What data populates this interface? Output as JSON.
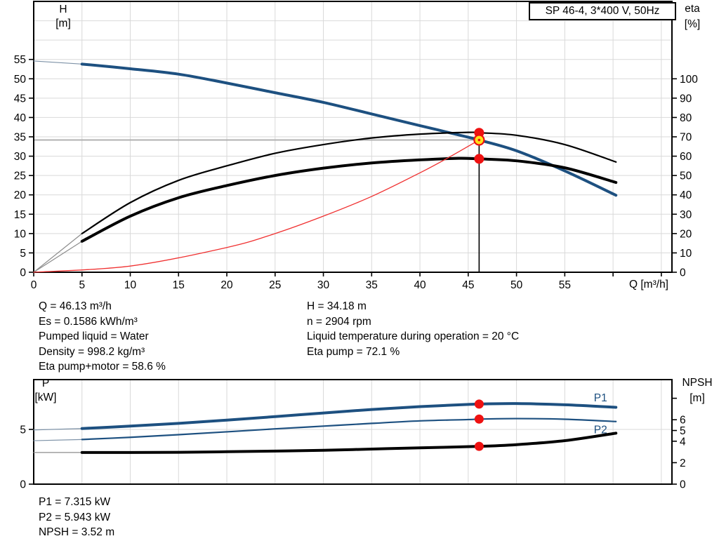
{
  "title_box": "SP 46-4, 3*400 V, 50Hz",
  "labels": {
    "h": "H",
    "h_unit": "[m]",
    "eta": "eta",
    "eta_unit": "[%]",
    "q": "Q [m³/h]",
    "p": "P",
    "p_unit": "[kW]",
    "npsh": "NPSH",
    "npsh_unit": "[m]"
  },
  "info": {
    "left": [
      "Q = 46.13 m³/h",
      "Es = 0.1586 kWh/m³",
      "Pumped liquid = Water",
      "Density = 998.2 kg/m³",
      "Eta pump+motor = 58.6 %"
    ],
    "right": [
      "H = 34.18 m",
      "n = 2904 rpm",
      "Liquid temperature during operation = 20 °C",
      "Eta pump = 72.1 %"
    ]
  },
  "results": [
    "P1 = 7.315 kW",
    "P2 = 5.943 kW",
    "NPSH = 3.52 m"
  ],
  "colors": {
    "curve_blue": "#1d5080",
    "curve_black": "#000000",
    "affinity_red": "#f03030",
    "marker_red": "#ee1111",
    "marker_yellow": "#ffe11a",
    "grid": "#d9d9d9",
    "op_gray_line": "#b0b0b0"
  },
  "chart_data": [
    {
      "type": "line",
      "title": "SP 46-4, 3*400 V, 50Hz",
      "x_axis": {
        "label": "Q [m³/h]",
        "range": [
          0,
          66.1
        ],
        "grid_step": 5,
        "ticks_labeled": [
          0,
          5,
          10,
          15,
          20,
          25,
          30,
          35,
          40,
          45,
          50,
          55
        ],
        "ticks_unlabeled": [
          60,
          65
        ]
      },
      "left_axis": {
        "label": "H [m]",
        "range": [
          0,
          70
        ],
        "grid_step": 5,
        "ticks": [
          0,
          5,
          10,
          15,
          20,
          25,
          30,
          35,
          40,
          45,
          50,
          55
        ]
      },
      "right_axis": {
        "label": "eta [%]",
        "range": [
          0,
          140
        ],
        "ticks": [
          0,
          10,
          20,
          30,
          40,
          50,
          60,
          70,
          80,
          90,
          100
        ]
      },
      "series": [
        {
          "name": "H",
          "axis": "left",
          "color": "#1d5080",
          "width": 4,
          "points": [
            [
              0,
              54.6
            ],
            [
              5,
              53.8
            ],
            [
              10,
              52.6
            ],
            [
              15,
              51.2
            ],
            [
              20,
              48.9
            ],
            [
              25,
              46.4
            ],
            [
              30,
              43.9
            ],
            [
              35,
              40.9
            ],
            [
              40,
              37.9
            ],
            [
              45,
              34.9
            ],
            [
              46.13,
              34.18
            ],
            [
              50,
              31.4
            ],
            [
              55,
              26.2
            ],
            [
              60.3,
              19.9
            ]
          ]
        },
        {
          "name": "eta pump",
          "axis": "right",
          "color": "#000000",
          "width": 2.2,
          "points": [
            [
              0,
              0
            ],
            [
              5,
              20
            ],
            [
              10,
              36
            ],
            [
              15,
              47.5
            ],
            [
              20,
              55
            ],
            [
              25,
              61.5
            ],
            [
              30,
              66
            ],
            [
              35,
              69.4
            ],
            [
              40,
              71.4
            ],
            [
              45,
              72.3
            ],
            [
              46.13,
              72.1
            ],
            [
              50,
              70.8
            ],
            [
              55,
              66
            ],
            [
              60.3,
              57
            ]
          ]
        },
        {
          "name": "eta pump+motor",
          "axis": "right",
          "color": "#000000",
          "width": 4,
          "points": [
            [
              0,
              0
            ],
            [
              5,
              16
            ],
            [
              10,
              29
            ],
            [
              15,
              38.5
            ],
            [
              20,
              44.8
            ],
            [
              25,
              50
            ],
            [
              30,
              53.8
            ],
            [
              35,
              56.5
            ],
            [
              40,
              58.1
            ],
            [
              44,
              58.9
            ],
            [
              46.13,
              58.6
            ],
            [
              50,
              57.6
            ],
            [
              55,
              54
            ],
            [
              60.3,
              46.4
            ]
          ]
        },
        {
          "name": "affinity curve",
          "axis": "left",
          "color": "#f03030",
          "width": 1.3,
          "no_intro": true,
          "points": [
            [
              0,
              0
            ],
            [
              10,
              1.6
            ],
            [
              20,
              6.4
            ],
            [
              25,
              10.0
            ],
            [
              30,
              14.5
            ],
            [
              35,
              19.6
            ],
            [
              40,
              25.7
            ],
            [
              43,
              29.7
            ],
            [
              46.13,
              34.18
            ]
          ]
        }
      ],
      "operating_point": {
        "q": 46.13,
        "vline_to_axis": true,
        "hline": {
          "value": 34.18,
          "axis": "left"
        },
        "markers": [
          {
            "series": "eta pump",
            "value": 72.1,
            "color": "red"
          },
          {
            "series": "H",
            "value": 34.18,
            "color": "yellow"
          },
          {
            "series": "eta pump+motor",
            "value": 58.6,
            "color": "red"
          }
        ]
      }
    },
    {
      "type": "line",
      "x_axis": {
        "label": "",
        "range": [
          0,
          66.1
        ],
        "grid_step": 5
      },
      "left_axis": {
        "label": "P [kW]",
        "range": [
          0,
          9.55
        ],
        "grid_step": 5,
        "ticks": [
          0,
          5
        ]
      },
      "right_axis": {
        "label": "NPSH [m]",
        "range": [
          0,
          9.74
        ],
        "ticks": [
          0,
          2,
          4,
          5,
          6
        ],
        "ticks_unlabeled": [
          8
        ]
      },
      "series": [
        {
          "name": "P1",
          "axis": "left",
          "color": "#1d5080",
          "width": 4,
          "inline_label_q": 58.3,
          "points": [
            [
              0,
              4.95
            ],
            [
              5,
              5.08
            ],
            [
              10,
              5.3
            ],
            [
              15,
              5.55
            ],
            [
              20,
              5.85
            ],
            [
              25,
              6.17
            ],
            [
              30,
              6.5
            ],
            [
              35,
              6.82
            ],
            [
              40,
              7.08
            ],
            [
              45,
              7.28
            ],
            [
              46.13,
              7.315
            ],
            [
              50,
              7.36
            ],
            [
              55,
              7.25
            ],
            [
              60.3,
              7.02
            ]
          ]
        },
        {
          "name": "P2",
          "axis": "left",
          "color": "#1d5080",
          "width": 2.2,
          "inline_label_q": 58.3,
          "points": [
            [
              0,
              3.97
            ],
            [
              5,
              4.08
            ],
            [
              10,
              4.28
            ],
            [
              15,
              4.52
            ],
            [
              20,
              4.78
            ],
            [
              25,
              5.05
            ],
            [
              30,
              5.3
            ],
            [
              35,
              5.55
            ],
            [
              40,
              5.78
            ],
            [
              45,
              5.9
            ],
            [
              46.13,
              5.943
            ],
            [
              50,
              5.99
            ],
            [
              55,
              5.93
            ],
            [
              60.3,
              5.72
            ]
          ]
        },
        {
          "name": "NPSH",
          "axis": "right",
          "color": "#000000",
          "width": 4,
          "points": [
            [
              0,
              2.95
            ],
            [
              5,
              2.95
            ],
            [
              10,
              2.95
            ],
            [
              15,
              2.97
            ],
            [
              20,
              3.02
            ],
            [
              25,
              3.08
            ],
            [
              30,
              3.15
            ],
            [
              35,
              3.27
            ],
            [
              40,
              3.38
            ],
            [
              46.13,
              3.52
            ],
            [
              50,
              3.68
            ],
            [
              55,
              4.05
            ],
            [
              60.3,
              4.75
            ]
          ]
        }
      ],
      "operating_point": {
        "q": 46.13,
        "markers": [
          {
            "series": "P1",
            "value": 7.315,
            "color": "red"
          },
          {
            "series": "P2",
            "value": 5.943,
            "color": "red"
          },
          {
            "series": "NPSH",
            "value": 3.52,
            "color": "red"
          }
        ]
      }
    }
  ]
}
